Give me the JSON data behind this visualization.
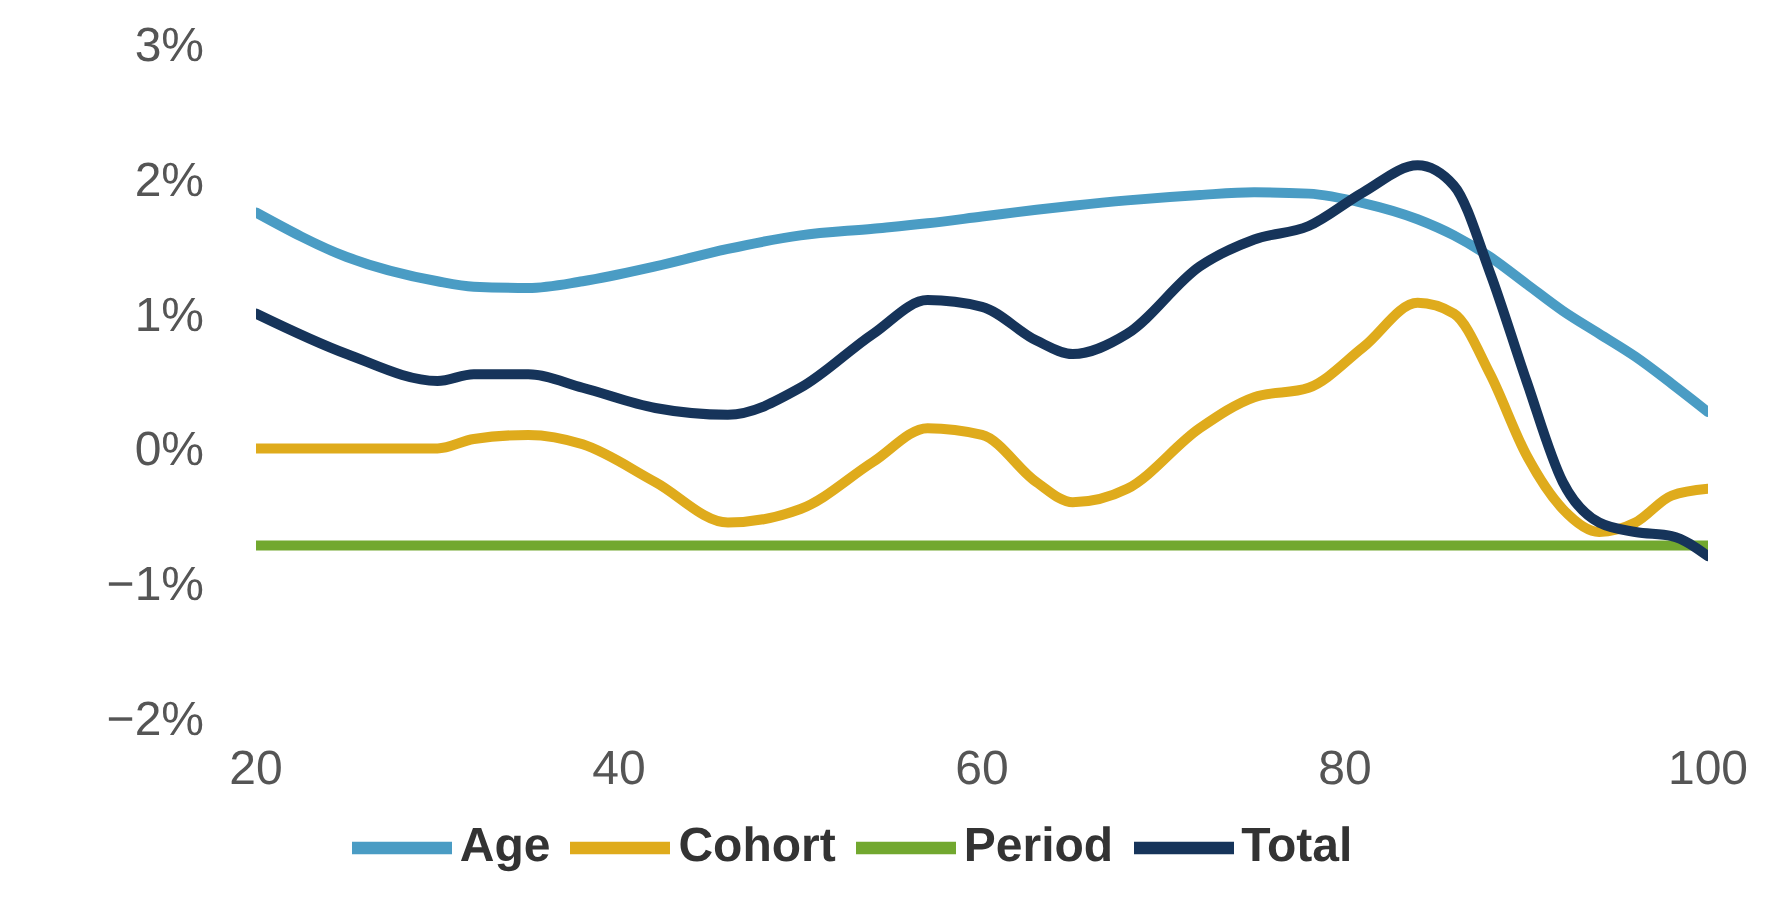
{
  "chart_data": {
    "type": "line",
    "x": [
      20,
      25,
      30,
      32,
      35,
      38,
      42,
      46,
      50,
      54,
      57,
      60,
      63,
      65,
      68,
      72,
      75,
      78,
      81,
      84,
      86,
      88,
      90,
      92,
      94,
      96,
      98,
      100
    ],
    "series": [
      {
        "name": "Age",
        "color": "#4a9cc4",
        "values": [
          1.75,
          1.42,
          1.24,
          1.2,
          1.19,
          1.24,
          1.35,
          1.48,
          1.58,
          1.63,
          1.67,
          1.72,
          1.77,
          1.8,
          1.84,
          1.88,
          1.9,
          1.89,
          1.82,
          1.7,
          1.58,
          1.42,
          1.22,
          1.02,
          0.85,
          0.68,
          0.48,
          0.27
        ]
      },
      {
        "name": "Period",
        "color": "#72a82f",
        "values": [
          -0.72,
          -0.72,
          -0.72,
          -0.72,
          -0.72,
          -0.72,
          -0.72,
          -0.72,
          -0.72,
          -0.72,
          -0.72,
          -0.72,
          -0.72,
          -0.72,
          -0.72,
          -0.72,
          -0.72,
          -0.72,
          -0.72,
          -0.72,
          -0.72,
          -0.72,
          -0.72,
          -0.72,
          -0.72,
          -0.72,
          -0.72,
          -0.72
        ]
      },
      {
        "name": "Cohort",
        "color": "#dfab1c",
        "values": [
          0,
          0,
          0,
          0.07,
          0.1,
          0.03,
          -0.25,
          -0.55,
          -0.45,
          -0.1,
          0.15,
          0.1,
          -0.25,
          -0.4,
          -0.3,
          0.15,
          0.38,
          0.45,
          0.75,
          1.08,
          1.0,
          0.55,
          -0.05,
          -0.45,
          -0.62,
          -0.55,
          -0.35,
          -0.3
        ]
      },
      {
        "name": "Total",
        "color": "#16345a",
        "values": [
          1.0,
          0.7,
          0.5,
          0.55,
          0.55,
          0.45,
          0.3,
          0.25,
          0.45,
          0.85,
          1.1,
          1.05,
          0.8,
          0.7,
          0.85,
          1.35,
          1.55,
          1.65,
          1.9,
          2.1,
          1.95,
          1.3,
          0.5,
          -0.25,
          -0.55,
          -0.62,
          -0.65,
          -0.8
        ]
      }
    ],
    "xlim": [
      20,
      100
    ],
    "xticks": [
      20,
      40,
      60,
      80,
      100
    ],
    "ylim": [
      -2,
      3
    ],
    "yticks": [
      {
        "value": -2,
        "label": "−2%"
      },
      {
        "value": -1,
        "label": "−1%"
      },
      {
        "value": 0,
        "label": "0%"
      },
      {
        "value": 1,
        "label": "1%"
      },
      {
        "value": 2,
        "label": "2%"
      },
      {
        "value": 3,
        "label": "3%"
      }
    ],
    "grid": false,
    "legend": "bottom",
    "marker": "none",
    "line_style": "solid"
  }
}
